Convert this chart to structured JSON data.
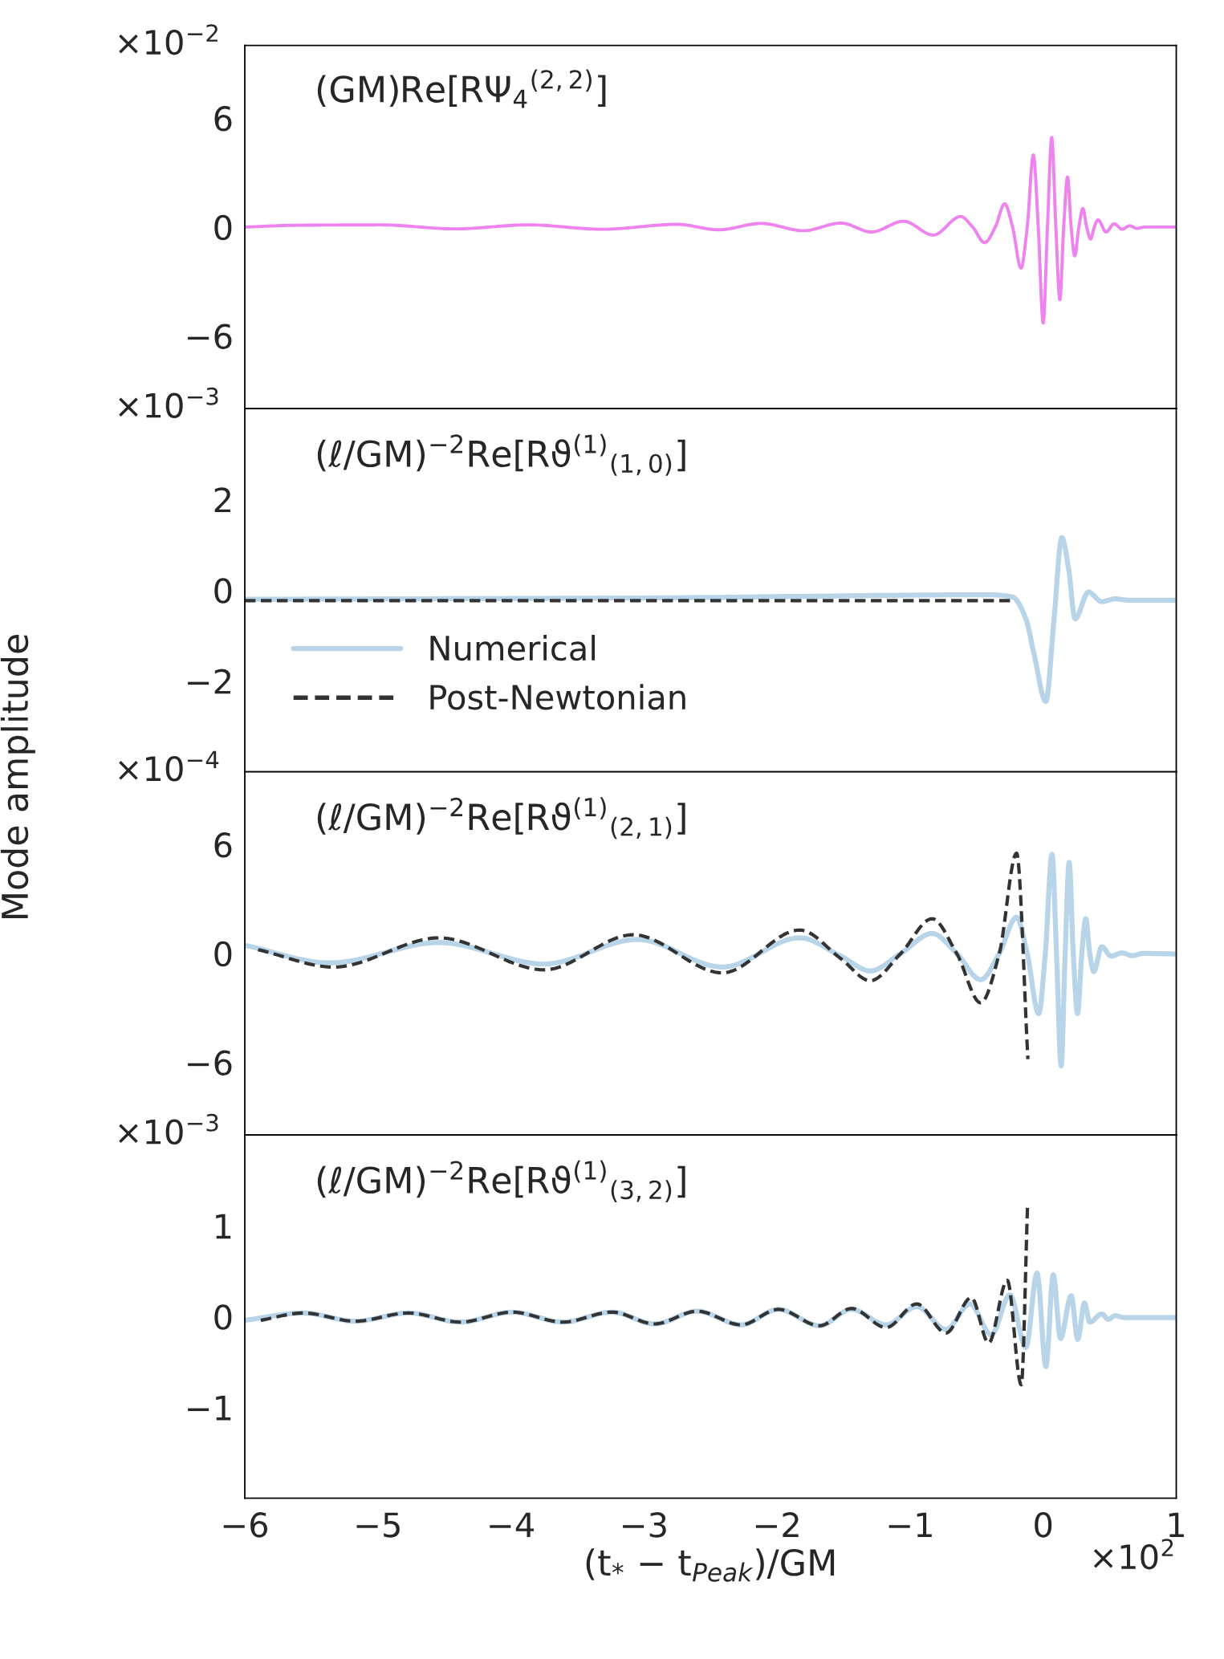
{
  "chart_data": [
    {
      "type": "line",
      "annotations": [
        "(GM)Re[RΨ$_{4}$$^{(2,2)}$]",
        "×10$^{−2}$"
      ],
      "xlim": [
        -6,
        1
      ],
      "ylim": [
        -10,
        10
      ],
      "yticks": [
        {
          "value": -6,
          "label": "−6"
        },
        0,
        6
      ],
      "xticks": [
        -6,
        -5,
        -4,
        -3,
        -2,
        -1,
        0,
        1
      ],
      "tick_labels": "y",
      "grid": false,
      "legend": false,
      "series": [
        {
          "color": "#ee82ee",
          "line_style": "solid",
          "x": [
            -6,
            -5.6,
            -4.98,
            -4.42,
            -3.87,
            -3.31,
            -2.75,
            -2.44,
            -2.12,
            -1.8,
            -1.52,
            -1.29,
            -1.05,
            -0.825,
            -0.62,
            -0.53,
            -0.44,
            -0.36,
            -0.29,
            -0.23,
            -0.167,
            -0.12,
            -0.074,
            -0.037,
            0.0,
            0.032,
            0.064,
            0.095,
            0.125,
            0.154,
            0.183,
            0.21,
            0.237,
            0.268,
            0.298,
            0.327,
            0.356,
            0.384,
            0.412,
            0.473,
            0.533,
            0.594,
            0.65,
            0.704,
            0.765,
            1.0
          ],
          "values": [
            0,
            0.1,
            0.12,
            -0.1,
            0.12,
            -0.12,
            0.15,
            -0.15,
            0.2,
            -0.2,
            0.22,
            -0.27,
            0.32,
            -0.44,
            0.58,
            0,
            -0.86,
            0,
            1.28,
            0,
            -2.26,
            0,
            3.97,
            0,
            -5.28,
            0,
            4.93,
            0,
            -4.0,
            0,
            2.76,
            0,
            -1.59,
            0,
            1.02,
            0,
            -0.66,
            0,
            0.4,
            -0.27,
            0.18,
            -0.12,
            0.07,
            -0.07,
            0,
            0
          ]
        }
      ]
    },
    {
      "type": "line",
      "annotations": [
        "(ℓ/GM)$^{−2}$Re[Rϑ$^{(1)}$$_{(1,0)}$]",
        "×10$^{−3}$"
      ],
      "xlim": [
        -6,
        1
      ],
      "ylim": [
        -4,
        4
      ],
      "yticks": [
        {
          "value": -2,
          "label": "−2"
        },
        0,
        2
      ],
      "xticks": [
        -6,
        -5,
        -4,
        -3,
        -2,
        -1,
        0,
        1
      ],
      "tick_labels": "y",
      "grid": false,
      "legend": "bottom left",
      "series": [
        {
          "name": "Numerical",
          "color": "#b7d4e8",
          "line_style": "solid",
          "x": [
            -6,
            -3,
            -0.4,
            -0.23,
            -0.13,
            -0.07,
            0.02,
            0.08,
            0.14,
            0.19,
            0.24,
            0.34,
            0.44,
            0.54,
            0.65,
            1.0
          ],
          "values": [
            -0.2,
            -0.17,
            -0.1,
            -0.15,
            -0.63,
            -1.39,
            -2.45,
            -0.69,
            1.16,
            0.49,
            -0.63,
            -0.04,
            -0.25,
            -0.19,
            -0.22,
            -0.22
          ]
        },
        {
          "name": "Post-Newtonian",
          "color": "#333333",
          "line_style": "dashed",
          "x": [
            -6,
            -0.24
          ],
          "values": [
            -0.23,
            -0.23
          ]
        }
      ]
    },
    {
      "type": "line",
      "annotations": [
        "(ℓ/GM)$^{−2}$Re[Rϑ$^{(1)}$$_{(2,1)}$]",
        "×10$^{−4}$"
      ],
      "ylabel": "Mode amplitude",
      "xlim": [
        -6,
        1
      ],
      "ylim": [
        -10,
        10
      ],
      "yticks": [
        {
          "value": -6,
          "label": "−6"
        },
        0,
        6
      ],
      "xticks": [
        -6,
        -5,
        -4,
        -3,
        -2,
        -1,
        0,
        1
      ],
      "tick_labels": "y",
      "grid": false,
      "legend": false,
      "series": [
        {
          "color": "#b7d4e8",
          "line_style": "solid",
          "x": [
            -6,
            -5.36,
            -4.54,
            -3.75,
            -3.05,
            -2.41,
            -1.83,
            -1.52,
            -1.3,
            -1.07,
            -0.835,
            -0.65,
            -0.47,
            -0.33,
            -0.2,
            -0.12,
            -0.034,
            0.016,
            0.066,
            0.1,
            0.135,
            0.165,
            0.195,
            0.226,
            0.258,
            0.29,
            0.32,
            0.35,
            0.38,
            0.44,
            0.51,
            0.59,
            0.67,
            0.75,
            1.0
          ],
          "values": [
            0.45,
            -0.52,
            0.6,
            -0.58,
            0.77,
            -0.75,
            0.86,
            -0.15,
            -0.96,
            0,
            1.1,
            0,
            -1.44,
            0,
            1.99,
            0,
            -3.31,
            0,
            5.45,
            0,
            -6.19,
            0,
            5.01,
            0,
            -3.31,
            0,
            1.91,
            0,
            -1.0,
            0.37,
            -0.15,
            0.03,
            -0.12,
            0,
            -0.03
          ]
        },
        {
          "color": "#333333",
          "line_style": "dashed",
          "x": [
            -5.9,
            -5.33,
            -4.54,
            -3.75,
            -3.08,
            -2.41,
            -1.83,
            -1.52,
            -1.3,
            -1.07,
            -0.835,
            -0.65,
            -0.47,
            -0.33,
            -0.2,
            -0.115
          ],
          "values": [
            0.21,
            -0.75,
            0.86,
            -0.9,
            1.03,
            -1.07,
            1.29,
            -0.29,
            -1.5,
            0,
            1.91,
            0,
            -2.72,
            0,
            5.52,
            -5.82
          ]
        }
      ]
    },
    {
      "type": "line",
      "annotations": [
        "(ℓ/GM)$^{−2}$Re[Rϑ$^{(1)}$$_{(3,2)}$]",
        "×10$^{−3}$",
        "×10$^{2}$"
      ],
      "xlabel": "(t$_{*}$ − t$_{Peak}$)/GM",
      "xlim": [
        -6,
        1
      ],
      "ylim": [
        -2,
        2
      ],
      "yticks": [
        {
          "value": -1,
          "label": "−1"
        },
        0,
        1
      ],
      "xticks": [
        {
          "value": -6,
          "label": "−6"
        },
        {
          "value": -5,
          "label": "−5"
        },
        {
          "value": -4,
          "label": "−4"
        },
        {
          "value": -3,
          "label": "−3"
        },
        {
          "value": -2,
          "label": "−2"
        },
        {
          "value": -1,
          "label": "−1"
        },
        0,
        1
      ],
      "grid": false,
      "legend": false,
      "series": [
        {
          "color": "#b7d4e8",
          "line_style": "solid",
          "x": [
            -6,
            -5.56,
            -5.17,
            -4.77,
            -4.38,
            -3.99,
            -3.61,
            -3.24,
            -2.92,
            -2.6,
            -2.27,
            -1.99,
            -1.68,
            -1.44,
            -1.18,
            -0.95,
            -0.73,
            -0.55,
            -0.39,
            -0.25,
            -0.13,
            -0.046,
            0.02,
            0.076,
            0.13,
            0.21,
            0.26,
            0.31,
            0.35,
            0.44,
            0.49,
            0.54,
            0.61,
            1.0
          ],
          "values": [
            -0.04,
            0.04,
            -0.05,
            0.04,
            -0.06,
            0.05,
            -0.06,
            0.05,
            -0.08,
            0.06,
            -0.09,
            0.08,
            -0.1,
            0.08,
            -0.09,
            0.11,
            -0.14,
            0.14,
            -0.2,
            0.24,
            -0.34,
            0.48,
            -0.55,
            0.46,
            -0.24,
            0.23,
            -0.25,
            0.15,
            -0.06,
            0.03,
            -0.03,
            0.01,
            -0.01,
            -0.01
          ]
        },
        {
          "color": "#333333",
          "line_style": "dashed",
          "x": [
            -5.88,
            -5.56,
            -5.17,
            -4.77,
            -4.38,
            -3.99,
            -3.61,
            -3.24,
            -2.92,
            -2.6,
            -2.27,
            -1.99,
            -1.68,
            -1.44,
            -1.18,
            -0.95,
            -0.73,
            -0.54,
            -0.41,
            -0.27,
            -0.165,
            -0.117
          ],
          "values": [
            -0.04,
            0.04,
            -0.05,
            0.04,
            -0.06,
            0.05,
            -0.06,
            0.05,
            -0.08,
            0.06,
            -0.09,
            0.08,
            -0.1,
            0.09,
            -0.12,
            0.14,
            -0.18,
            0.21,
            -0.29,
            0.4,
            -0.75,
            1.25
          ]
        }
      ]
    }
  ]
}
